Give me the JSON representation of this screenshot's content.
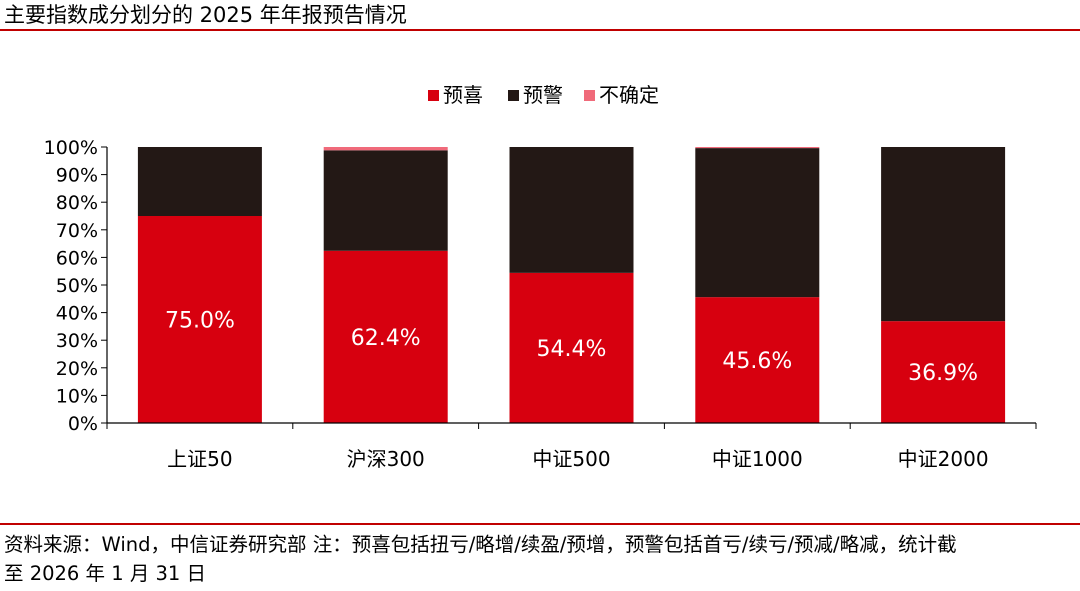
{
  "header": {
    "title": "主要指数成分划分的 2025 年年报预告情况"
  },
  "footer": {
    "source_line_1": "资料来源：Wind，中信证券研究部 注：预喜包括扭亏/略增/续盈/预增，预警包括首亏/续亏/预减/略减，统计截",
    "source_line_2": "至 2026 年 1 月 31 日"
  },
  "colors": {
    "accent": "#c00000",
    "positive": "#d7000f",
    "warning": "#231815",
    "uncertain": "#f06a7a",
    "label_text": "#ffffff"
  },
  "chart_data": {
    "type": "bar",
    "stacked": true,
    "title": "",
    "xlabel": "",
    "ylabel": "",
    "categories": [
      "上证50",
      "沪深300",
      "中证500",
      "中证1000",
      "中证2000"
    ],
    "series": [
      {
        "name": "预喜",
        "color": "#d7000f",
        "values": [
          75.0,
          62.4,
          54.4,
          45.6,
          36.9
        ]
      },
      {
        "name": "预警",
        "color": "#231815",
        "values": [
          25.0,
          36.4,
          45.6,
          54.0,
          63.1
        ]
      },
      {
        "name": "不确定",
        "color": "#f06a7a",
        "values": [
          0.0,
          1.2,
          0.0,
          0.4,
          0.0
        ]
      }
    ],
    "data_labels": [
      "75.0%",
      "62.4%",
      "54.4%",
      "45.6%",
      "36.9%"
    ],
    "ylim": [
      0,
      100
    ],
    "yticks": [
      "0%",
      "10%",
      "20%",
      "30%",
      "40%",
      "50%",
      "60%",
      "70%",
      "80%",
      "90%",
      "100%"
    ],
    "grid": false,
    "legend_position": "top-center"
  }
}
